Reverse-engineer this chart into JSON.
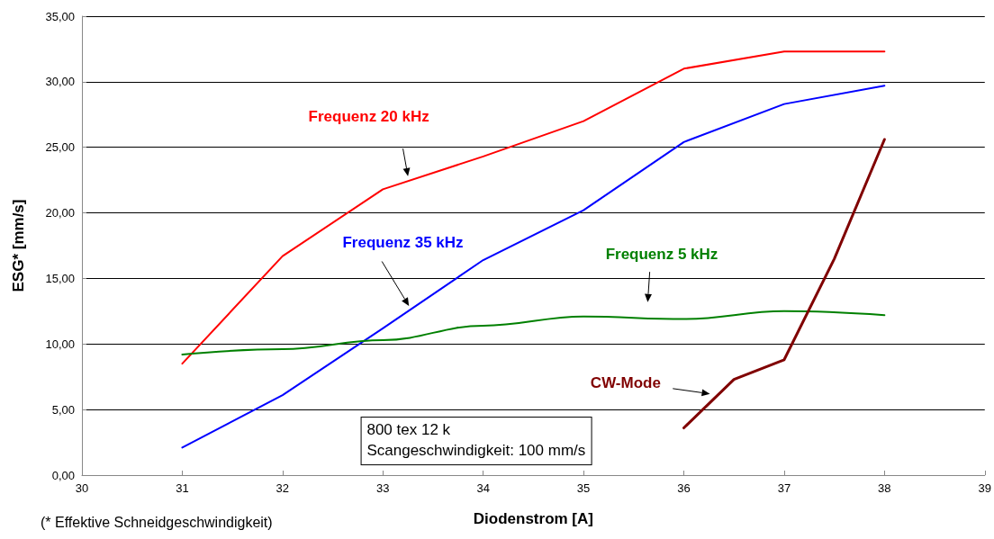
{
  "chart_data": {
    "type": "line",
    "xlabel": "Diodenstrom [A]",
    "ylabel": "ESG* [mm/s]",
    "xlim": [
      30,
      39
    ],
    "xticks": [
      30,
      31,
      32,
      33,
      34,
      35,
      36,
      37,
      38,
      39
    ],
    "ylim": [
      0,
      35
    ],
    "yticks": [
      {
        "value": 0,
        "label": "0,00"
      },
      {
        "value": 5,
        "label": "5,00"
      },
      {
        "value": 10,
        "label": "10,00"
      },
      {
        "value": 15,
        "label": "15,00"
      },
      {
        "value": 20,
        "label": "20,00"
      },
      {
        "value": 25,
        "label": "25,00"
      },
      {
        "value": 30,
        "label": "30,00"
      },
      {
        "value": 35,
        "label": "35,00"
      }
    ],
    "grid": "y",
    "legend": false,
    "marker": "none",
    "line_style": "solid",
    "series": [
      {
        "name": "Frequenz 20 kHz",
        "color": "#ff0000",
        "x": [
          31,
          32,
          33,
          34,
          35,
          36,
          37,
          38
        ],
        "values": [
          8.5,
          16.7,
          21.8,
          24.3,
          27.0,
          31.0,
          32.3,
          32.3
        ]
      },
      {
        "name": "Frequenz 35 kHz",
        "color": "#0000ff",
        "x": [
          31,
          32,
          33,
          34,
          35,
          36,
          37,
          38
        ],
        "values": [
          2.1,
          6.1,
          11.2,
          16.4,
          20.2,
          25.4,
          28.3,
          29.7
        ]
      },
      {
        "name": "Frequenz 5 kHz",
        "color": "#008000",
        "x": [
          31,
          32,
          33,
          34,
          35,
          36,
          37,
          38
        ],
        "values": [
          9.2,
          9.6,
          10.3,
          11.4,
          12.1,
          11.9,
          12.5,
          12.2
        ]
      },
      {
        "name": "CW-Mode",
        "color": "#800000",
        "x": [
          36,
          36.5,
          37,
          37.5,
          38
        ],
        "values": [
          3.6,
          7.3,
          8.8,
          16.5,
          25.6
        ]
      }
    ],
    "annotations": [
      "800 tex 12 k",
      "Scangeschwindigkeit: 100 mm/s",
      "(* Effektive Schneidgeschwindigkeit)"
    ]
  }
}
